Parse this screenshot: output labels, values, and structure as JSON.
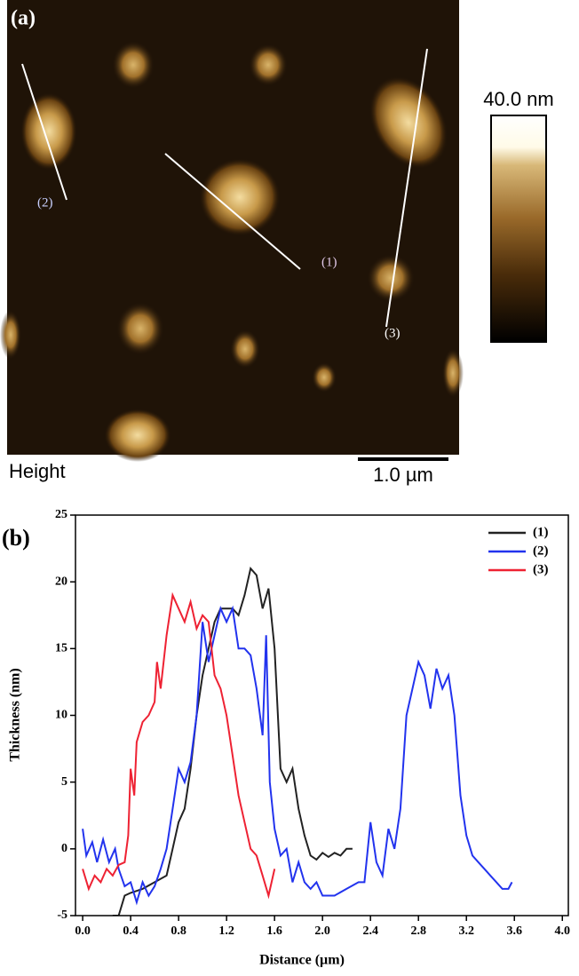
{
  "afm_image": {
    "panel_label": "(a)",
    "line_labels": [
      "(1)",
      "(2)",
      "(3)"
    ],
    "colorbar_label": "40.0 nm",
    "channel": "Height",
    "scale_bar": "1.0 µm"
  },
  "chart_data": {
    "type": "line",
    "panel_label": "(b)",
    "x_label": "Distance (µm)",
    "y_label": "Thickness (nm)",
    "xlim": [
      -0.06,
      4.05
    ],
    "ylim": [
      -5,
      25
    ],
    "xticks": [
      {
        "value": 0,
        "label": "0.0"
      },
      0.4,
      0.8,
      1.2,
      1.6,
      {
        "value": 2,
        "label": "2.0"
      },
      2.4,
      2.8,
      3.2,
      3.6,
      {
        "value": 4,
        "label": "4.0"
      }
    ],
    "yticks": [
      -5,
      0,
      5,
      10,
      15,
      20,
      25
    ],
    "legend": "upper right",
    "series": [
      {
        "name": "(1)",
        "color": "#222222",
        "x": [
          0.25,
          0.3,
          0.35,
          0.4,
          0.5,
          0.6,
          0.7,
          0.75,
          0.8,
          0.85,
          0.9,
          0.95,
          1.0,
          1.05,
          1.1,
          1.15,
          1.2,
          1.25,
          1.3,
          1.35,
          1.4,
          1.45,
          1.5,
          1.55,
          1.6,
          1.65,
          1.7,
          1.75,
          1.8,
          1.85,
          1.9,
          1.95,
          2.0,
          2.05,
          2.1,
          2.15,
          2.2,
          2.25
        ],
        "values": [
          -5,
          -5,
          -3.5,
          -3.3,
          -3,
          -2.5,
          -2,
          0,
          2,
          3,
          6,
          10,
          13,
          15,
          17,
          18,
          18,
          18,
          17.5,
          19,
          21,
          20.5,
          18,
          19.5,
          15,
          6,
          5,
          6,
          3,
          1,
          -0.5,
          -0.8,
          -0.3,
          -0.6,
          -0.3,
          -0.5,
          0,
          0
        ]
      },
      {
        "name": "(2)",
        "color": "#2233ee",
        "x": [
          0.0,
          0.03,
          0.08,
          0.12,
          0.17,
          0.22,
          0.27,
          0.3,
          0.35,
          0.4,
          0.45,
          0.5,
          0.55,
          0.6,
          0.65,
          0.7,
          0.75,
          0.8,
          0.85,
          0.9,
          0.95,
          1.0,
          1.05,
          1.1,
          1.15,
          1.2,
          1.25,
          1.3,
          1.35,
          1.4,
          1.45,
          1.5,
          1.53,
          1.56,
          1.6,
          1.65,
          1.7,
          1.75,
          1.8,
          1.85,
          1.9,
          1.95,
          2.0,
          2.1,
          2.2,
          2.3,
          2.35,
          2.4,
          2.45,
          2.5,
          2.55,
          2.6,
          2.65,
          2.7,
          2.75,
          2.8,
          2.85,
          2.9,
          2.95,
          3.0,
          3.05,
          3.1,
          3.15,
          3.2,
          3.25,
          3.3,
          3.35,
          3.4,
          3.45,
          3.5,
          3.55,
          3.58
        ],
        "values": [
          1.5,
          -0.5,
          0.5,
          -1,
          0.7,
          -1,
          0,
          -1.5,
          -2.8,
          -2.5,
          -4,
          -2.5,
          -3.5,
          -2.8,
          -1.5,
          0,
          3,
          6,
          5,
          6.5,
          10,
          17,
          14,
          16,
          18,
          17,
          18,
          15,
          15,
          14.5,
          12,
          8.5,
          16,
          5,
          1.5,
          -0.5,
          0,
          -2.5,
          -1,
          -2.5,
          -3,
          -2.5,
          -3.5,
          -3.5,
          -3,
          -2.5,
          -2.5,
          2,
          -1,
          -2,
          1.5,
          0,
          3,
          10,
          12,
          14,
          13,
          10.5,
          13.5,
          12,
          13,
          10,
          4,
          1,
          -0.5,
          -1,
          -1.5,
          -2,
          -2.5,
          -3,
          -3,
          -2.5
        ]
      },
      {
        "name": "(3)",
        "color": "#ee2233",
        "x": [
          0.0,
          0.05,
          0.1,
          0.15,
          0.2,
          0.25,
          0.3,
          0.35,
          0.38,
          0.4,
          0.43,
          0.45,
          0.5,
          0.55,
          0.6,
          0.62,
          0.65,
          0.7,
          0.75,
          0.8,
          0.85,
          0.9,
          0.95,
          1.0,
          1.05,
          1.1,
          1.15,
          1.2,
          1.25,
          1.3,
          1.35,
          1.4,
          1.45,
          1.5,
          1.55,
          1.6
        ],
        "values": [
          -1.5,
          -3,
          -2,
          -2.5,
          -1.5,
          -2,
          -1.2,
          -1,
          1,
          6,
          4,
          8,
          9.5,
          10,
          11,
          14,
          12,
          16,
          19,
          18,
          17,
          18.5,
          16.5,
          17.5,
          17,
          13,
          12,
          10,
          7,
          4,
          2,
          0,
          -0.5,
          -2,
          -3.5,
          -1.5
        ]
      }
    ]
  }
}
